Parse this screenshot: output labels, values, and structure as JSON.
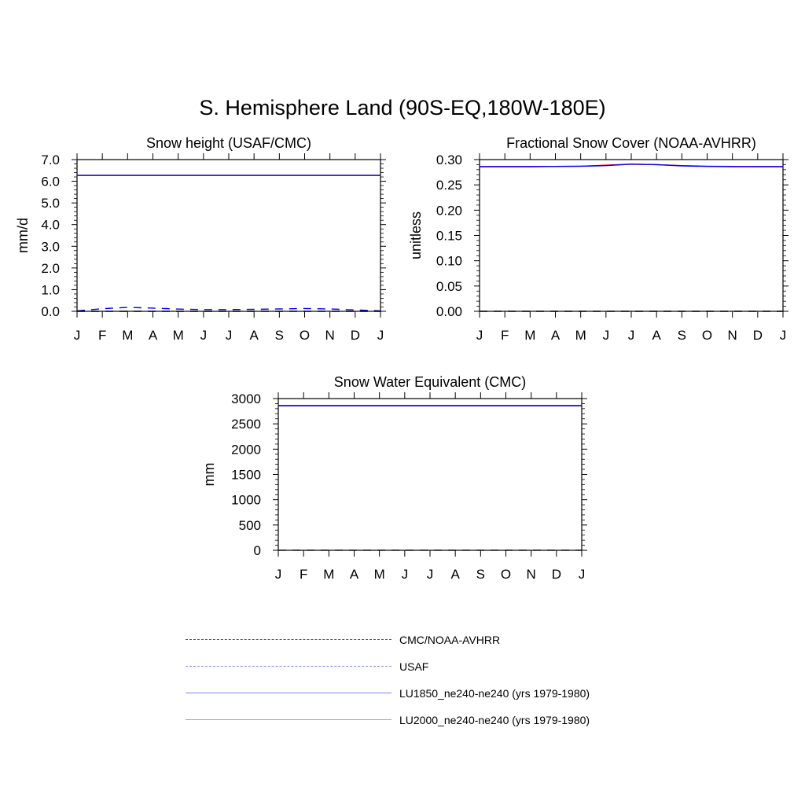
{
  "figure": {
    "title": "S. Hemisphere Land (90S-EQ,180W-180E)"
  },
  "chart_data": [
    {
      "type": "line",
      "title": "Snow height (USAF/CMC)",
      "ylabel": "mm/d",
      "xlabel": "",
      "x": [
        "J",
        "F",
        "M",
        "A",
        "M",
        "J",
        "J",
        "A",
        "S",
        "O",
        "N",
        "D",
        "J"
      ],
      "ylim": [
        0,
        7
      ],
      "yticks": [
        0,
        1,
        2,
        3,
        4,
        5,
        6,
        7
      ],
      "ytick_labels": [
        "0.0",
        "1.0",
        "2.0",
        "3.0",
        "4.0",
        "5.0",
        "6.0",
        "7.0"
      ],
      "series": [
        {
          "name": "LU2000_ne240-ne240 (yrs 1979-1980)",
          "color": "#ff0000",
          "dash": "solid",
          "values": [
            6.27,
            6.27,
            6.27,
            6.27,
            6.27,
            6.27,
            6.27,
            6.27,
            6.27,
            6.27,
            6.27,
            6.27,
            6.27
          ]
        },
        {
          "name": "LU1850_ne240-ne240 (yrs 1979-1980)",
          "color": "#0000ff",
          "dash": "solid",
          "values": [
            6.27,
            6.27,
            6.27,
            6.27,
            6.27,
            6.27,
            6.27,
            6.27,
            6.27,
            6.27,
            6.27,
            6.27,
            6.27
          ]
        },
        {
          "name": "USAF",
          "color": "#0000ff",
          "dash": "dashed",
          "values": [
            0.02,
            0.12,
            0.18,
            0.15,
            0.1,
            0.08,
            0.08,
            0.09,
            0.11,
            0.13,
            0.11,
            0.06,
            0.02
          ]
        },
        {
          "name": "CMC/NOAA-AVHRR",
          "color": "#000000",
          "dash": "dashed",
          "values": [
            0.0,
            0.0,
            0.0,
            0.0,
            0.0,
            0.0,
            0.0,
            0.0,
            0.0,
            0.0,
            0.0,
            0.0,
            0.0
          ]
        }
      ]
    },
    {
      "type": "line",
      "title": "Fractional Snow Cover (NOAA-AVHRR)",
      "ylabel": "unitless",
      "xlabel": "",
      "x": [
        "J",
        "F",
        "M",
        "A",
        "M",
        "J",
        "J",
        "A",
        "S",
        "O",
        "N",
        "D",
        "J"
      ],
      "ylim": [
        0,
        0.3
      ],
      "yticks": [
        0,
        0.05,
        0.1,
        0.15,
        0.2,
        0.25,
        0.3
      ],
      "ytick_labels": [
        "0.00",
        "0.05",
        "0.10",
        "0.15",
        "0.20",
        "0.25",
        "0.30"
      ],
      "series": [
        {
          "name": "LU2000_ne240-ne240 (yrs 1979-1980)",
          "color": "#ff0000",
          "dash": "solid",
          "values": [
            0.286,
            0.286,
            0.286,
            0.2865,
            0.287,
            0.289,
            0.291,
            0.29,
            0.288,
            0.287,
            0.2865,
            0.286,
            0.286
          ]
        },
        {
          "name": "LU1850_ne240-ne240 (yrs 1979-1980)",
          "color": "#0000ff",
          "dash": "solid",
          "values": [
            0.286,
            0.286,
            0.286,
            0.2865,
            0.287,
            0.288,
            0.291,
            0.29,
            0.2875,
            0.2865,
            0.286,
            0.286,
            0.286
          ]
        },
        {
          "name": "CMC/NOAA-AVHRR",
          "color": "#000000",
          "dash": "dashed",
          "values": [
            0.0,
            0.0,
            0.0,
            0.0,
            0.0,
            0.0,
            0.0,
            0.0,
            0.0,
            0.0,
            0.0,
            0.0,
            0.0
          ]
        }
      ]
    },
    {
      "type": "line",
      "title": "Snow Water Equivalent (CMC)",
      "ylabel": "mm",
      "xlabel": "",
      "x": [
        "J",
        "F",
        "M",
        "A",
        "M",
        "J",
        "J",
        "A",
        "S",
        "O",
        "N",
        "D",
        "J"
      ],
      "ylim": [
        0,
        3000
      ],
      "yticks": [
        0,
        500,
        1000,
        1500,
        2000,
        2500,
        3000
      ],
      "ytick_labels": [
        "0",
        "500",
        "1000",
        "1500",
        "2000",
        "2500",
        "3000"
      ],
      "series": [
        {
          "name": "LU2000_ne240-ne240 (yrs 1979-1980)",
          "color": "#ff0000",
          "dash": "solid",
          "values": [
            2860,
            2860,
            2860,
            2860,
            2860,
            2860,
            2860,
            2860,
            2860,
            2860,
            2860,
            2860,
            2860
          ]
        },
        {
          "name": "LU1850_ne240-ne240 (yrs 1979-1980)",
          "color": "#0000ff",
          "dash": "solid",
          "values": [
            2860,
            2860,
            2860,
            2860,
            2860,
            2860,
            2860,
            2860,
            2860,
            2860,
            2860,
            2860,
            2860
          ]
        },
        {
          "name": "CMC/NOAA-AVHRR",
          "color": "#000000",
          "dash": "dashed",
          "values": [
            2,
            2,
            2,
            2,
            2,
            2,
            2,
            2,
            2,
            2,
            2,
            2,
            2
          ]
        }
      ]
    }
  ],
  "legend": {
    "items": [
      {
        "label": "CMC/NOAA-AVHRR",
        "color": "#555555",
        "style": "dashed"
      },
      {
        "label": "USAF",
        "color": "#8080ff",
        "style": "dashed"
      },
      {
        "label": "LU1850_ne240-ne240 (yrs 1979-1980)",
        "color": "#8080ff",
        "style": "solid"
      },
      {
        "label": "LU2000_ne240-ne240 (yrs 1979-1980)",
        "color": "#ff8080",
        "style": "solid"
      }
    ]
  }
}
